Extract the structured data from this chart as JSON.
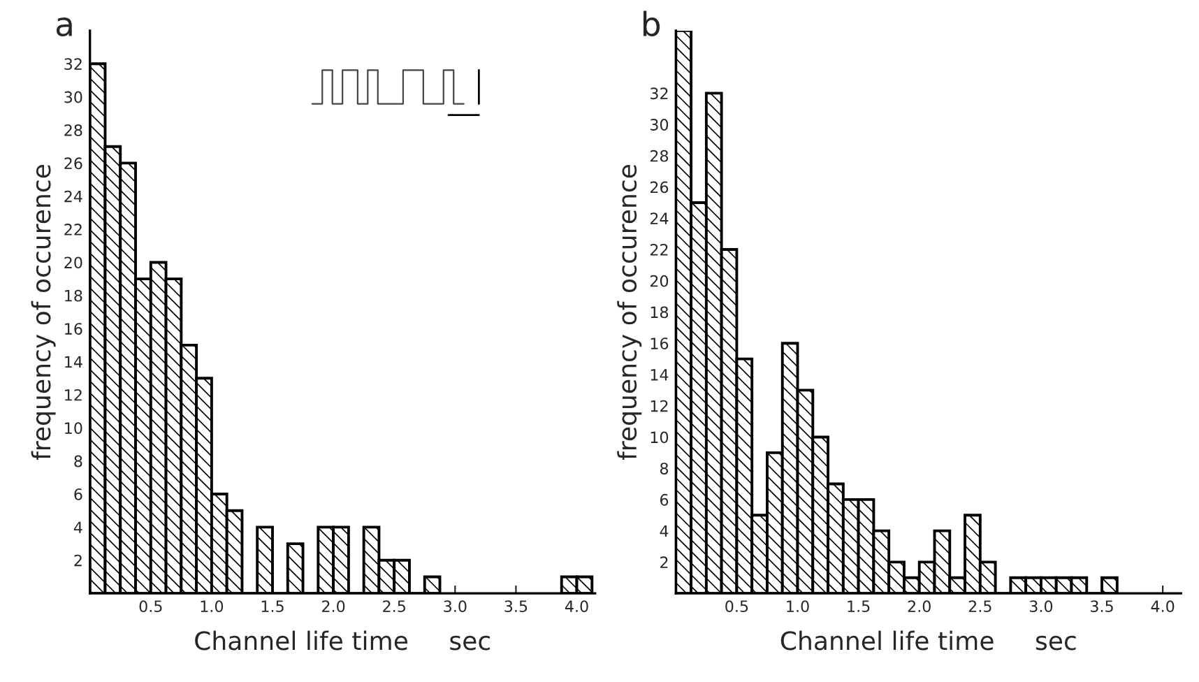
{
  "chart_data": [
    {
      "type": "histogram",
      "title": "a",
      "xlabel": "Channel life time     sec",
      "ylabel": "frequency of occurence",
      "color": "#000000",
      "bins": [
        0,
        0.125,
        0.25,
        0.375,
        0.5,
        0.625,
        0.75,
        0.875,
        1.0,
        1.125,
        1.25,
        1.375,
        1.5,
        1.625,
        1.75,
        1.875,
        2.0,
        2.125,
        2.25,
        2.375,
        2.5,
        2.625,
        2.75,
        2.875,
        3.0,
        3.125,
        3.25,
        3.375,
        3.5,
        3.625,
        3.75,
        3.875,
        4.0,
        4.125
      ],
      "values": [
        32,
        27,
        26,
        19,
        20,
        19,
        15,
        13,
        6,
        5,
        0,
        4,
        0,
        3,
        0,
        4,
        4,
        0,
        4,
        2,
        2,
        0,
        1,
        null,
        null,
        null,
        null,
        null,
        null,
        null,
        null,
        1,
        1
      ],
      "xlim": [
        0,
        4.15
      ],
      "xticks": [
        0.5,
        {
          "value": 1,
          "label": "1.0"
        },
        1.5,
        {
          "value": 2,
          "label": "2.0"
        },
        2.5,
        {
          "value": 3,
          "label": "3.0"
        },
        3.5,
        {
          "value": 4,
          "label": "4.0"
        }
      ],
      "ylim": [
        0,
        34
      ],
      "yticks": [
        2,
        4,
        6,
        8,
        10,
        12,
        14,
        16,
        18,
        20,
        22,
        24,
        26,
        28,
        30,
        32
      ],
      "grid": false
    },
    {
      "type": "histogram",
      "title": "b",
      "xlabel": "Channel life time     sec",
      "ylabel": "frequency of occurence",
      "color": "#000000",
      "bins": [
        0,
        0.125,
        0.25,
        0.375,
        0.5,
        0.625,
        0.75,
        0.875,
        1.0,
        1.125,
        1.25,
        1.375,
        1.5,
        1.625,
        1.75,
        1.875,
        2.0,
        2.125,
        2.25,
        2.375,
        2.5,
        2.625,
        2.75,
        2.875,
        3.0,
        3.125,
        3.25,
        3.375,
        3.5,
        3.625
      ],
      "values": [
        36,
        25,
        32,
        22,
        15,
        5,
        9,
        16,
        13,
        10,
        7,
        6,
        6,
        4,
        2,
        1,
        2,
        4,
        1,
        5,
        2,
        0,
        1,
        1,
        1,
        1,
        1,
        0,
        1
      ],
      "xlim": [
        0,
        4.15
      ],
      "xticks": [
        0.5,
        {
          "value": 1,
          "label": "1.0"
        },
        1.5,
        {
          "value": 2,
          "label": "2.0"
        },
        2.5,
        {
          "value": 3,
          "label": "3.0"
        },
        3.5,
        {
          "value": 4,
          "label": "4.0"
        }
      ],
      "ylim": [
        0,
        36
      ],
      "yticks": [
        2,
        4,
        6,
        8,
        10,
        12,
        14,
        16,
        18,
        20,
        22,
        24,
        26,
        28,
        30,
        32
      ],
      "grid": false
    }
  ]
}
